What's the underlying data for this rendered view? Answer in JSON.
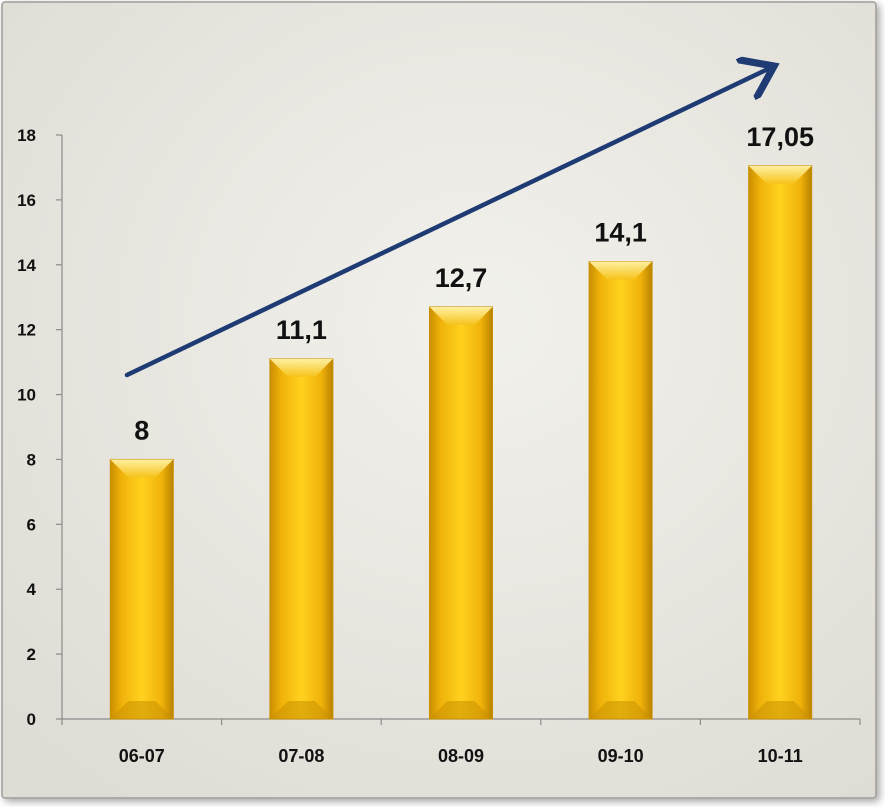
{
  "chart_data": {
    "type": "bar",
    "categories": [
      "06-07",
      "07-08",
      "08-09",
      "09-10",
      "10-11"
    ],
    "values": [
      8,
      11.1,
      12.7,
      14.1,
      17.05
    ],
    "data_labels": [
      "8",
      "11,1",
      "12,7",
      "14,1",
      "17,05"
    ],
    "title": "",
    "xlabel": "",
    "ylabel": "",
    "ylim": [
      0,
      18
    ],
    "yticks": [
      0,
      2,
      4,
      6,
      8,
      10,
      12,
      14,
      16,
      18
    ],
    "grid": false,
    "legend": "none",
    "annotations": [
      "upward-trend-arrow"
    ],
    "colors": {
      "bar_fill": "#F5BE0F",
      "bar_light": "#FFE56A",
      "bar_dark": "#C98F00",
      "arrow": "#1F3B73",
      "background": "#E8E6DF",
      "axis": "#8C8C8C"
    }
  }
}
